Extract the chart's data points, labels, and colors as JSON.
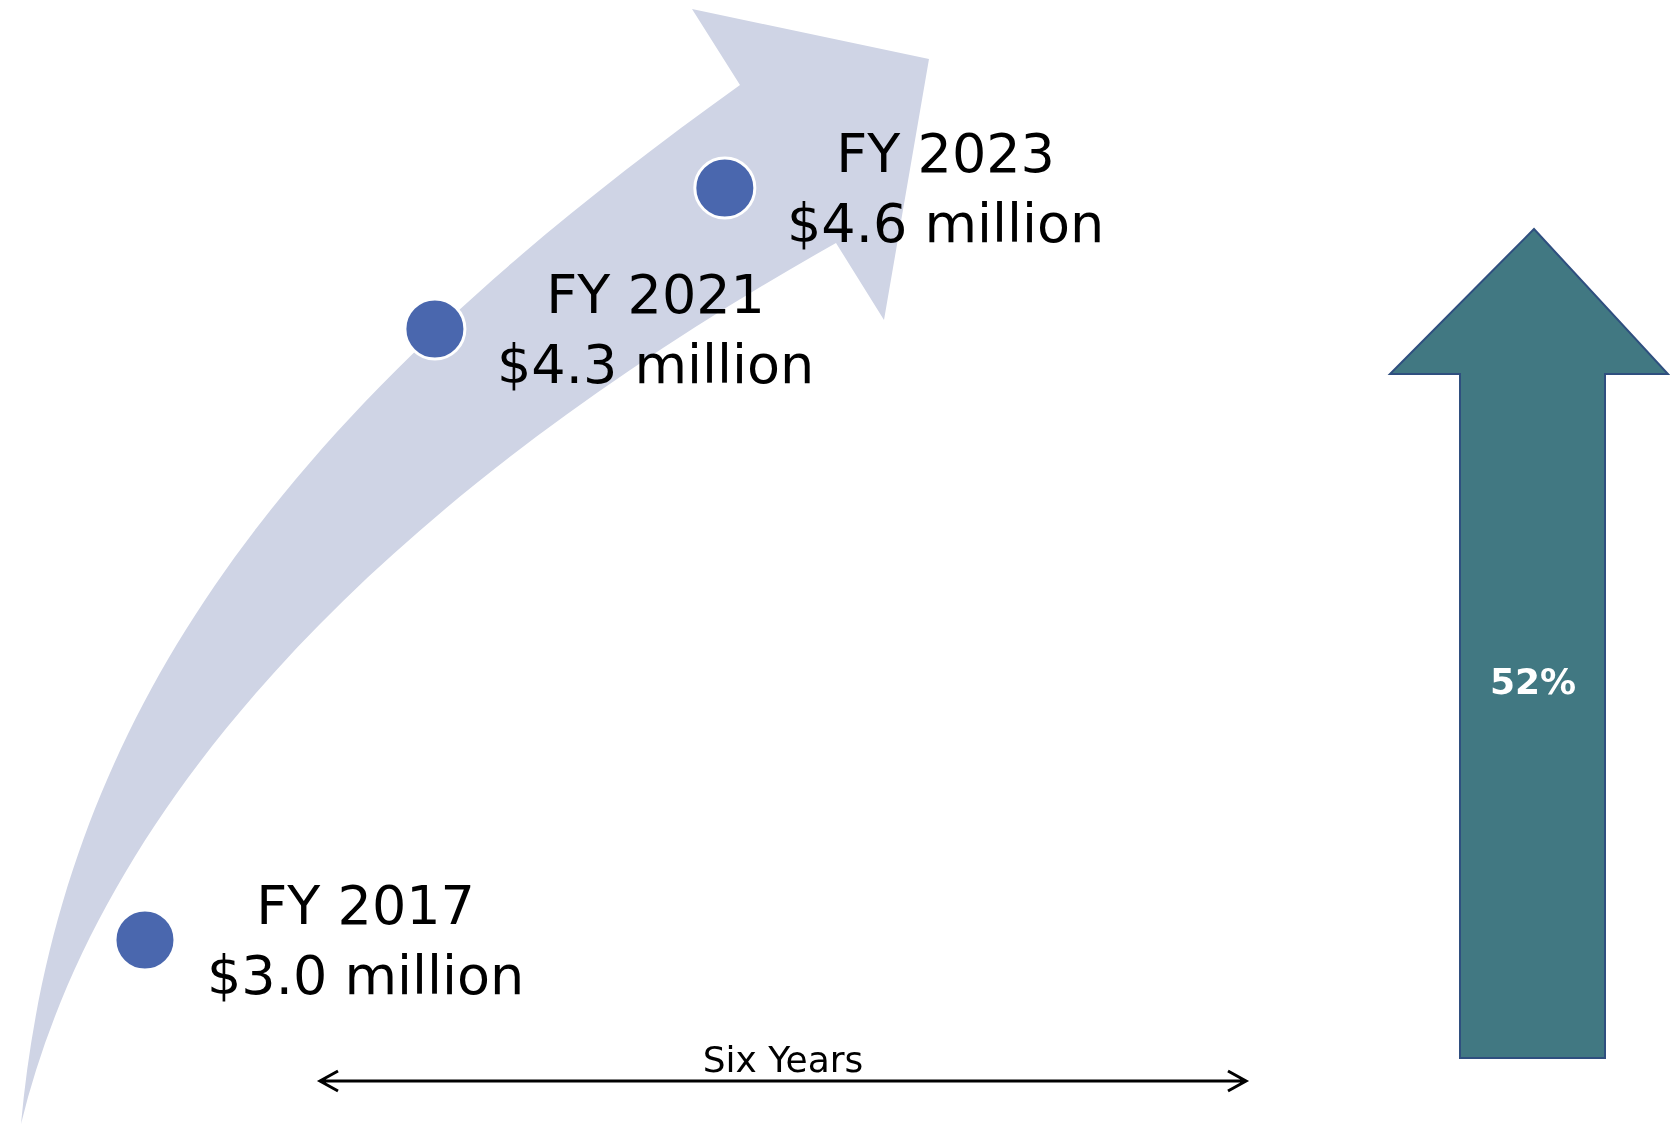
{
  "chart_data": {
    "type": "other",
    "categories": [
      "FY 2017",
      "FY 2021",
      "FY 2023"
    ],
    "values": [
      3.0,
      4.3,
      4.6
    ],
    "value_labels": [
      "$3.0 million",
      "$4.3 million",
      "$4.6 million"
    ],
    "color": "#4a67ae",
    "annotations": [
      "52%",
      "Six Years"
    ]
  }
}
